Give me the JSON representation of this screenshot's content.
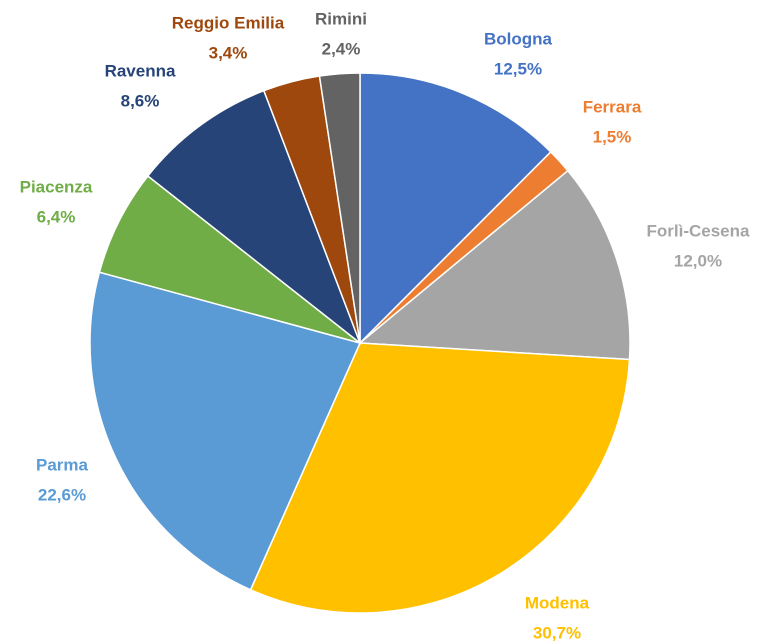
{
  "chart_data": {
    "type": "pie",
    "categories": [
      "Bologna",
      "Ferrara",
      "Forlì-Cesena",
      "Modena",
      "Parma",
      "Piacenza",
      "Ravenna",
      "Reggio Emilia",
      "Rimini"
    ],
    "values": [
      12.5,
      1.5,
      12.0,
      30.7,
      22.6,
      6.4,
      8.6,
      3.4,
      2.4
    ],
    "value_labels": [
      "12,5%",
      "1,5%",
      "12,0%",
      "30,7%",
      "22,6%",
      "6,4%",
      "8,6%",
      "3,4%",
      "2,4%"
    ],
    "colors": [
      "#4472c4",
      "#ed7d31",
      "#a5a5a5",
      "#ffc000",
      "#5b9bd5",
      "#70ad47",
      "#264478",
      "#9e480e",
      "#636363"
    ]
  }
}
